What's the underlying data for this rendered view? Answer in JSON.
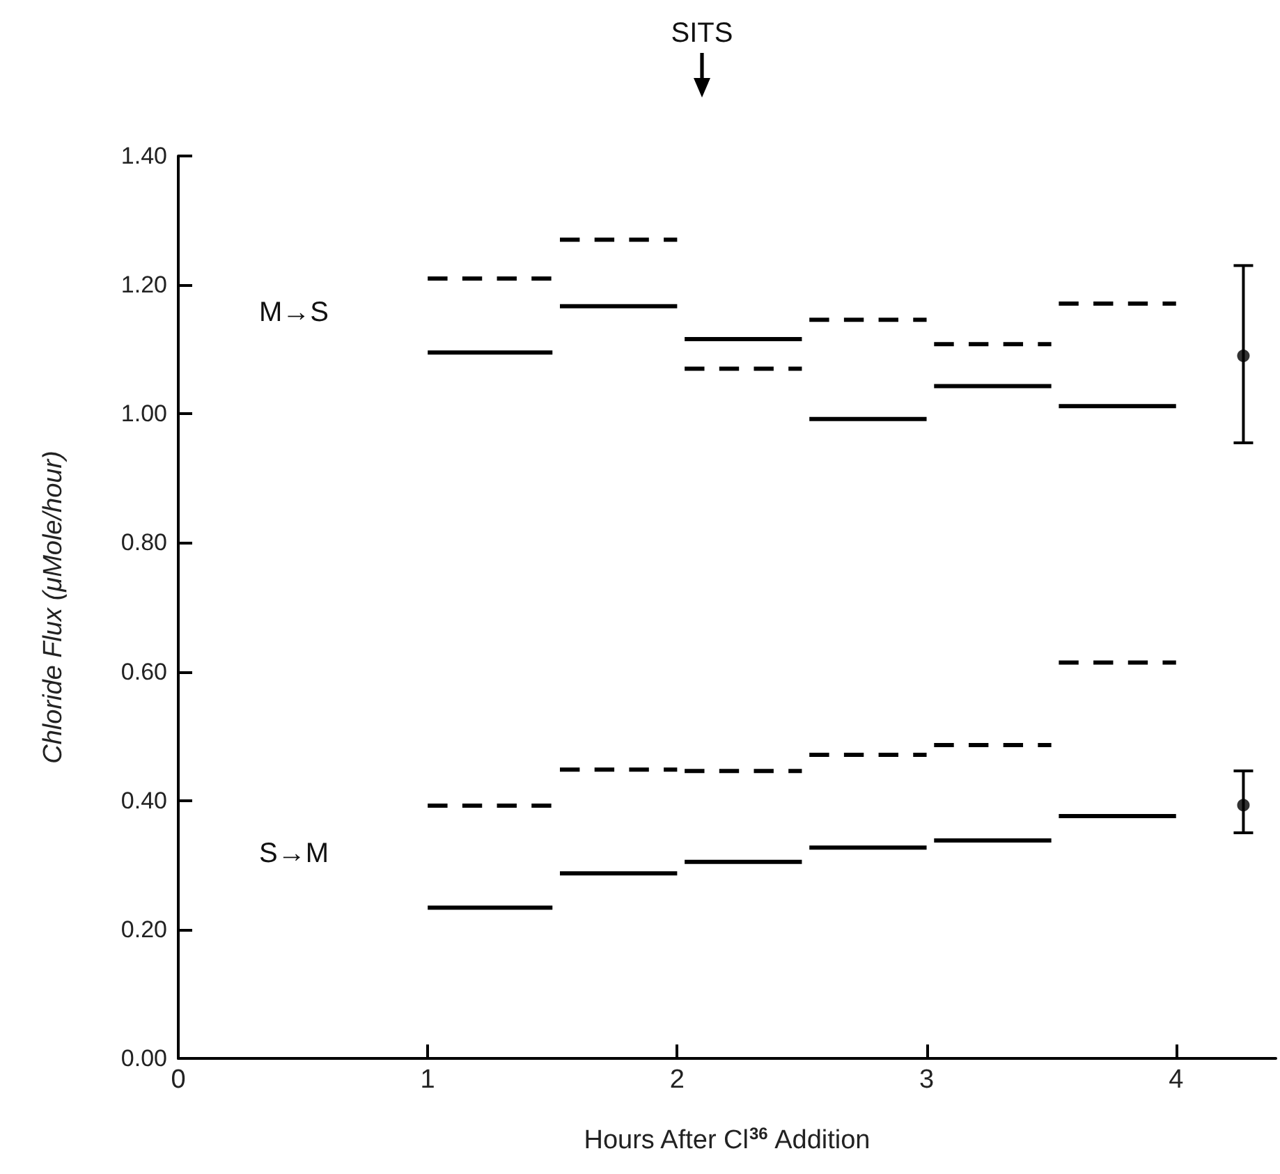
{
  "chart_data": {
    "type": "line",
    "xlabel": "Hours After Cl$^{36}$ Addition",
    "ylabel": "Chloride Flux (μMole/hour)",
    "xlim": [
      0,
      4.4
    ],
    "xticks": [
      0,
      1,
      2,
      3,
      4
    ],
    "ylim": [
      0,
      1.4
    ],
    "yticks": [
      {
        "value": 0,
        "label": "0.00"
      },
      {
        "value": 0.2,
        "label": "0.20"
      },
      {
        "value": 0.4,
        "label": "0.40"
      },
      {
        "value": 0.6,
        "label": "0.60"
      },
      {
        "value": 0.8,
        "label": "0.80"
      },
      {
        "value": 1.0,
        "label": "1.00"
      },
      {
        "value": 1.2,
        "label": "1.20"
      },
      {
        "value": 1.4,
        "label": "1.40"
      }
    ],
    "grid": false,
    "marker": "none",
    "series": [
      {
        "type": "line",
        "line_style": "solid",
        "color": "#000000",
        "x": [
          1,
          1.5,
          null,
          1.53,
          2,
          null,
          2.03,
          2.5,
          null,
          2.53,
          3,
          null,
          3.03,
          3.5,
          null,
          3.53,
          4
        ],
        "values": [
          1.095,
          1.095,
          null,
          1.167,
          1.167,
          null,
          1.116,
          1.116,
          null,
          0.992,
          0.992,
          null,
          1.043,
          1.043,
          null,
          1.012,
          1.012
        ]
      },
      {
        "type": "line",
        "line_style": "dashed",
        "color": "#000000",
        "x": [
          1,
          1.5,
          null,
          1.53,
          2,
          null,
          2.03,
          2.5,
          null,
          2.53,
          3,
          null,
          3.03,
          3.5,
          null,
          3.53,
          4
        ],
        "values": [
          1.21,
          1.21,
          null,
          1.27,
          1.27,
          null,
          1.07,
          1.07,
          null,
          1.146,
          1.146,
          null,
          1.108,
          1.108,
          null,
          1.171,
          1.171
        ]
      },
      {
        "type": "line",
        "line_style": "solid",
        "color": "#000000",
        "x": [
          1,
          1.5,
          null,
          1.53,
          2,
          null,
          2.03,
          2.5,
          null,
          2.53,
          3,
          null,
          3.03,
          3.5,
          null,
          3.53,
          4
        ],
        "values": [
          0.234,
          0.234,
          null,
          0.287,
          0.287,
          null,
          0.305,
          0.305,
          null,
          0.327,
          0.327,
          null,
          0.338,
          0.338,
          null,
          0.376,
          0.376
        ]
      },
      {
        "line_style": "dashed",
        "color": "#000000",
        "x": [
          1,
          1.5,
          null,
          1.53,
          2,
          null,
          2.03,
          2.5,
          null,
          2.53,
          3,
          null,
          3.03,
          3.5,
          null,
          3.53,
          4
        ],
        "values": [
          0.392,
          0.392,
          null,
          0.448,
          0.448,
          null,
          0.446,
          0.446,
          null,
          0.471,
          0.471,
          null,
          0.486,
          0.486,
          null,
          0.614,
          0.614
        ]
      },
      {
        "type": "scatter",
        "marker": "circle",
        "color": "#000000",
        "x": [
          4.27,
          4.27
        ],
        "values": [
          1.09,
          0.393
        ],
        "errors": [
          [
            0.955,
            1.23
          ],
          [
            0.35,
            0.446
          ]
        ]
      }
    ],
    "annotations": [
      "M→S",
      "S→M",
      "SITS"
    ]
  }
}
